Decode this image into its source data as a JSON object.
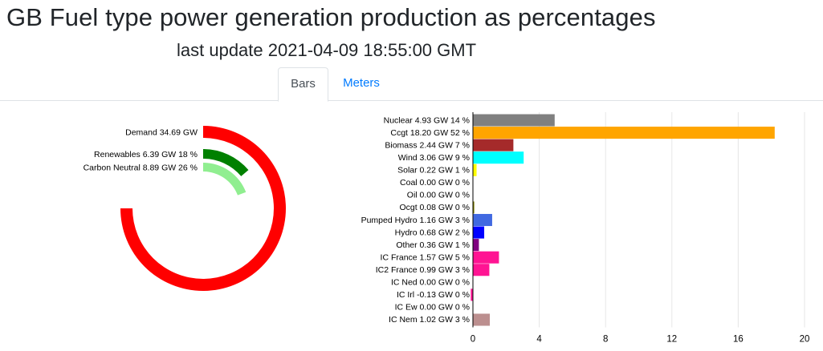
{
  "header": {
    "title": "GB Fuel type power generation production as percentages",
    "subtitle": "last update 2021-04-09 18:55:00 GMT"
  },
  "tabs": [
    {
      "label": "Bars",
      "active": true
    },
    {
      "label": "Meters",
      "active": false
    }
  ],
  "chart_data": [
    {
      "type": "radial-bar",
      "max": 34.69,
      "series": [
        {
          "label": "Demand 34.69 GW",
          "value": 34.69,
          "color": "#ff0000"
        },
        {
          "label": "Renewables 6.39 GW 18 %",
          "value": 6.39,
          "color": "#008000"
        },
        {
          "label": "Carbon Neutral 8.89 GW 26 %",
          "value": 8.89,
          "color": "#90ee90"
        }
      ]
    },
    {
      "type": "bar",
      "orientation": "horizontal",
      "xlim": [
        0,
        20
      ],
      "xticks": [
        0,
        4,
        8,
        12,
        16,
        20
      ],
      "grid": true,
      "categories": [
        {
          "label": "Nuclear 4.93 GW 14 %",
          "value": 4.93,
          "color": "#808080"
        },
        {
          "label": "Ccgt 18.20 GW 52 %",
          "value": 18.2,
          "color": "#ffa500"
        },
        {
          "label": "Biomass 2.44 GW 7 %",
          "value": 2.44,
          "color": "#a52a2a"
        },
        {
          "label": "Wind 3.06 GW 9 %",
          "value": 3.06,
          "color": "#00ffff"
        },
        {
          "label": "Solar 0.22 GW 1 %",
          "value": 0.22,
          "color": "#ffff00"
        },
        {
          "label": "Coal 0.00 GW 0 %",
          "value": 0.0,
          "color": "#000000"
        },
        {
          "label": "Oil 0.00 GW 0 %",
          "value": 0.0,
          "color": "#000000"
        },
        {
          "label": "Ocgt 0.08 GW 0 %",
          "value": 0.08,
          "color": "#808000"
        },
        {
          "label": "Pumped Hydro 1.16 GW 3 %",
          "value": 1.16,
          "color": "#4169e1"
        },
        {
          "label": "Hydro 0.68 GW 2 %",
          "value": 0.68,
          "color": "#0000ff"
        },
        {
          "label": "Other 0.36 GW 1 %",
          "value": 0.36,
          "color": "#800080"
        },
        {
          "label": "IC France 1.57 GW 5 %",
          "value": 1.57,
          "color": "#ff1493"
        },
        {
          "label": "IC2 France 0.99 GW 3 %",
          "value": 0.99,
          "color": "#ff1493"
        },
        {
          "label": "IC Ned 0.00 GW 0 %",
          "value": 0.0,
          "color": "#ff8c00"
        },
        {
          "label": "IC Irl -0.13 GW 0 %",
          "value": -0.13,
          "color": "#ff1493"
        },
        {
          "label": "IC Ew 0.00 GW 0 %",
          "value": 0.0,
          "color": "#008000"
        },
        {
          "label": "IC Nem 1.02 GW 3 %",
          "value": 1.02,
          "color": "#bc8f8f"
        }
      ]
    }
  ]
}
